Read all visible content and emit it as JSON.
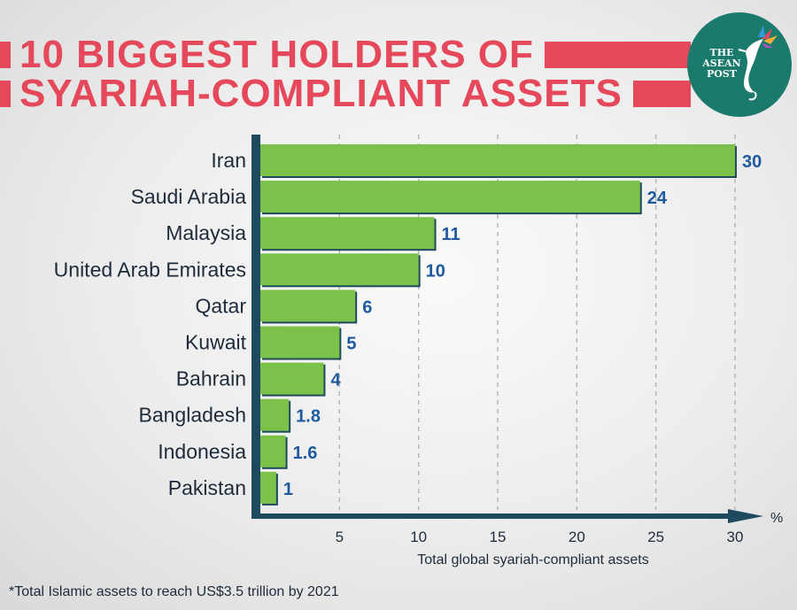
{
  "title": {
    "line1": "10 BIGGEST HOLDERS OF",
    "line2": "SYARIAH-COMPLIANT ASSETS"
  },
  "logo": {
    "text": "THE\nASEAN\nPOST",
    "icon": "hummingbird-icon"
  },
  "colors": {
    "title": "#e4485a",
    "bar": "#7cc24a",
    "bar_shadow": "#1d4a5e",
    "axis": "#1d4a5e",
    "value_label": "#1e5aa0",
    "logo_bg": "#1a7a6b"
  },
  "chart_data": {
    "type": "bar",
    "orientation": "horizontal",
    "categories": [
      "Iran",
      "Saudi Arabia",
      "Malaysia",
      "United Arab Emirates",
      "Qatar",
      "Kuwait",
      "Bahrain",
      "Bangladesh",
      "Indonesia",
      "Pakistan"
    ],
    "values": [
      30,
      24,
      11,
      10,
      6,
      5,
      4,
      1.8,
      1.6,
      1
    ],
    "value_labels": [
      "30",
      "24",
      "11",
      "10",
      "6",
      "5",
      "4",
      "1.8",
      "1.6",
      "1"
    ],
    "xticks": [
      "5",
      "10",
      "15",
      "20",
      "25",
      "30"
    ],
    "xtick_values": [
      5,
      10,
      15,
      20,
      25,
      30
    ],
    "xlim": [
      0,
      30
    ],
    "xlabel": "Total global syariah-compliant assets",
    "xunit": "%",
    "grid": true
  },
  "footnote": "*Total Islamic assets to reach US$3.5 trillion by 2021"
}
